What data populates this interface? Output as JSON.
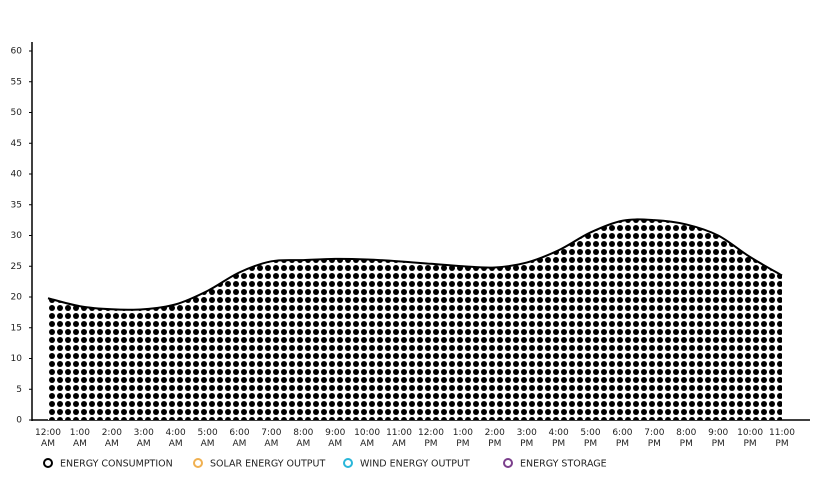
{
  "chart_data": {
    "type": "area",
    "categories": [
      "12:00 AM",
      "1:00 AM",
      "2:00 AM",
      "3:00 AM",
      "4:00 AM",
      "5:00 AM",
      "6:00 AM",
      "7:00 AM",
      "8:00 AM",
      "9:00 AM",
      "10:00 AM",
      "11:00 AM",
      "12:00 PM",
      "1:00 PM",
      "2:00 PM",
      "3:00 PM",
      "4:00 PM",
      "5:00 PM",
      "6:00 PM",
      "7:00 PM",
      "8:00 PM",
      "9:00 PM",
      "10:00 PM",
      "11:00 PM"
    ],
    "series": [
      {
        "name": "ENERGY CONSUMPTION",
        "color": "#000000",
        "values": [
          19.8,
          18.5,
          18,
          18,
          18.8,
          21,
          24,
          25.8,
          26,
          26.2,
          26.1,
          25.8,
          25.4,
          25,
          24.8,
          25.6,
          27.6,
          30.5,
          32.4,
          32.5,
          31.8,
          30,
          26.5,
          23.5
        ]
      },
      {
        "name": "SOLAR ENERGY OUTPUT",
        "color": "#f0b050"
      },
      {
        "name": "WIND ENERGY OUTPUT",
        "color": "#29b6d9"
      },
      {
        "name": "ENERGY STORAGE",
        "color": "#7b3f8c"
      }
    ],
    "ylim": [
      0,
      60
    ],
    "yticks": [
      0,
      5,
      10,
      15,
      20,
      25,
      30,
      35,
      40,
      45,
      50,
      55,
      60
    ],
    "grid": false,
    "legend": "bottom"
  }
}
